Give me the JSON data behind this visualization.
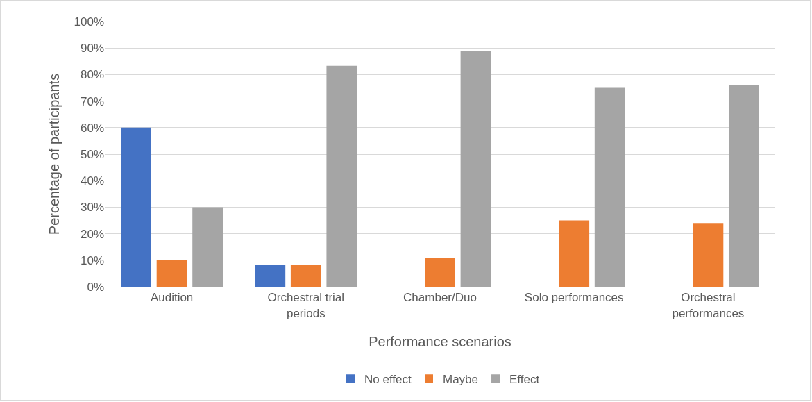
{
  "chart_data": {
    "type": "bar",
    "xlabel": "Performance scenarios",
    "ylabel": "Percentage of participants",
    "categories": [
      "Audition",
      "Orchestral trial periods",
      "Chamber/Duo",
      "Solo performances",
      "Orchestral performances"
    ],
    "series": [
      {
        "name": "No effect",
        "color": "#4472c4",
        "values": [
          60,
          8.3,
          0,
          0,
          0
        ]
      },
      {
        "name": "Maybe",
        "color": "#ed7d31",
        "values": [
          10,
          8.3,
          11,
          25,
          24
        ]
      },
      {
        "name": "Effect",
        "color": "#a5a5a5",
        "values": [
          30,
          83.3,
          89,
          75,
          76
        ]
      }
    ],
    "ylim": [
      0,
      100
    ],
    "yticks": [
      {
        "value": 0,
        "label": "0%"
      },
      {
        "value": 10,
        "label": "10%"
      },
      {
        "value": 20,
        "label": "20%"
      },
      {
        "value": 30,
        "label": "30%"
      },
      {
        "value": 40,
        "label": "40%"
      },
      {
        "value": 50,
        "label": "50%"
      },
      {
        "value": 60,
        "label": "60%"
      },
      {
        "value": 70,
        "label": "70%"
      },
      {
        "value": 80,
        "label": "80%"
      },
      {
        "value": 90,
        "label": "90%"
      },
      {
        "value": 100,
        "label": "100%"
      }
    ],
    "grid": "y",
    "legend": "bottom"
  }
}
